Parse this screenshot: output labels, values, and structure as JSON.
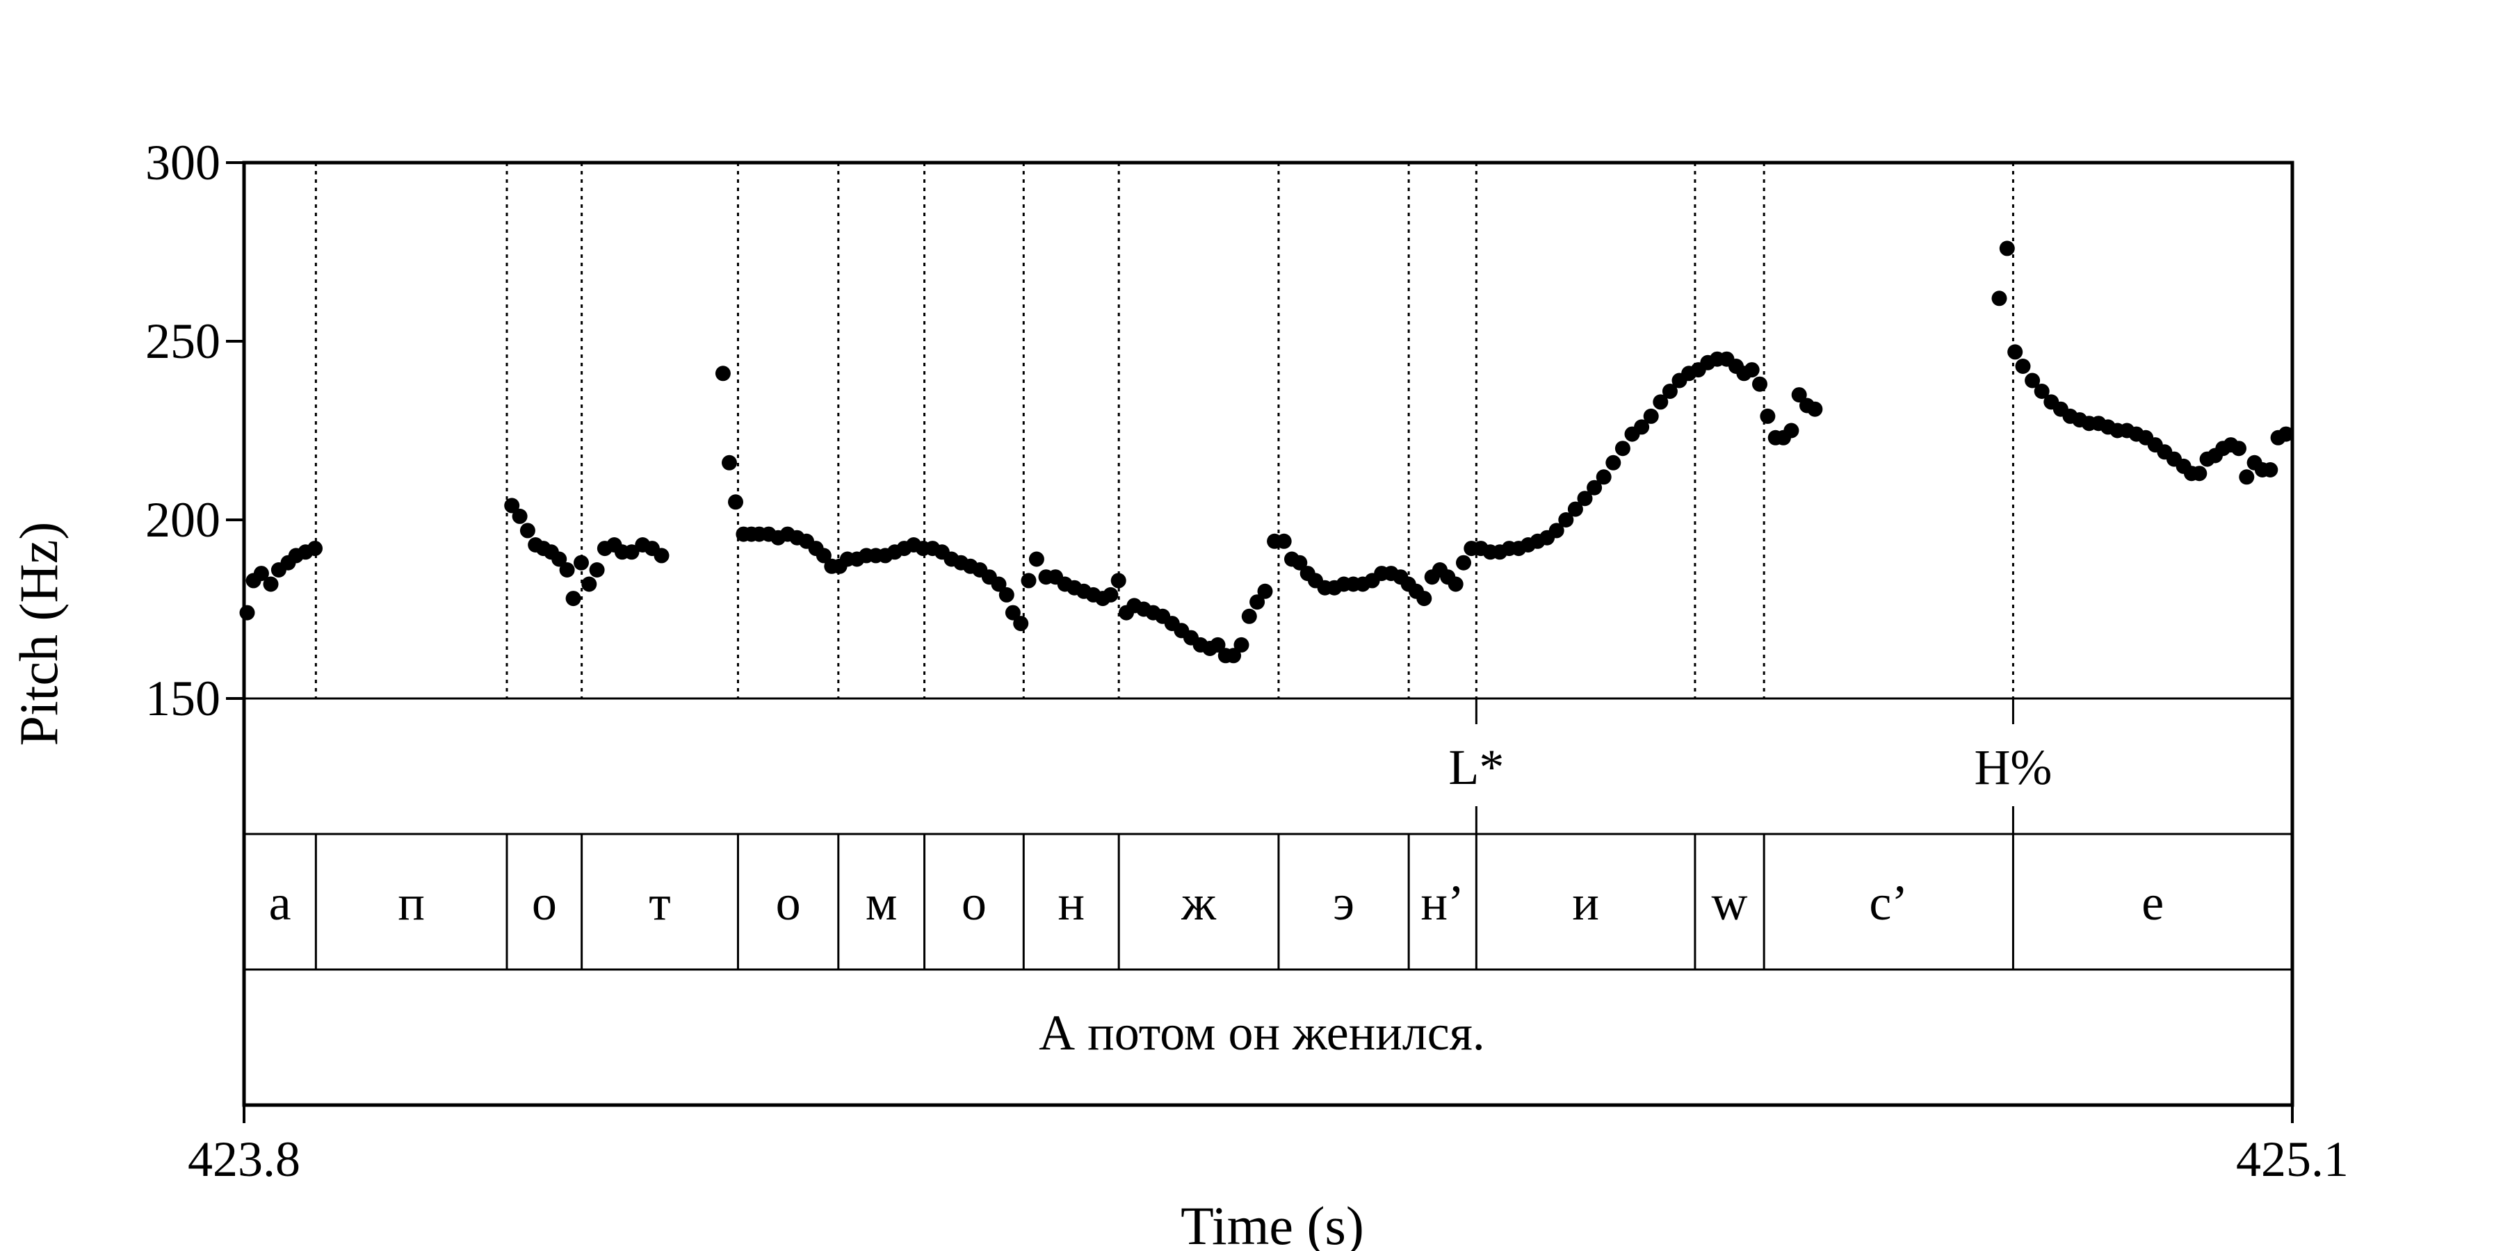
{
  "chart_data": {
    "type": "scatter",
    "xlabel": "Time (s)",
    "ylabel": "Pitch (Hz)",
    "xlim": [
      423.8,
      425.1
    ],
    "ylim": [
      150,
      300
    ],
    "x_ticks": [
      "423.8",
      "425.1"
    ],
    "y_ticks": [
      300,
      250,
      200,
      150
    ],
    "grid": false,
    "legend": "none",
    "colors": {
      "points": "#000000",
      "axes": "#000000",
      "boundaries": "#000000"
    },
    "boundaries": [
      423.8456,
      423.9668,
      424.0143,
      424.1135,
      424.1772,
      424.2318,
      424.2948,
      424.3552,
      424.4566,
      424.5392,
      424.5821,
      424.7209,
      424.7647,
      424.9228
    ],
    "tones": [
      {
        "label": "L*",
        "time": 424.5821
      },
      {
        "label": "H%",
        "time": 424.9228
      }
    ],
    "segments": [
      {
        "label": "а",
        "start": 423.8,
        "end": 423.8456
      },
      {
        "label": "п",
        "start": 423.8456,
        "end": 423.9668
      },
      {
        "label": "о",
        "start": 423.9668,
        "end": 424.0143
      },
      {
        "label": "т",
        "start": 424.0143,
        "end": 424.1135
      },
      {
        "label": "о",
        "start": 424.1135,
        "end": 424.1772
      },
      {
        "label": "м",
        "start": 424.1772,
        "end": 424.2318
      },
      {
        "label": "о",
        "start": 424.2318,
        "end": 424.2948
      },
      {
        "label": "н",
        "start": 424.2948,
        "end": 424.3552
      },
      {
        "label": "ж",
        "start": 424.3552,
        "end": 424.4566
      },
      {
        "label": "э",
        "start": 424.4566,
        "end": 424.5392
      },
      {
        "label": "н’",
        "start": 424.5392,
        "end": 424.5821
      },
      {
        "label": "и",
        "start": 424.5821,
        "end": 424.7209
      },
      {
        "label": "w",
        "start": 424.7209,
        "end": 424.7647
      },
      {
        "label": "с’",
        "start": 424.7647,
        "end": 424.9228
      },
      {
        "label": "е",
        "start": 424.9228,
        "end": 425.1
      }
    ],
    "utterance": "А потом он женился.",
    "points": [
      [
        423.802,
        174
      ],
      [
        423.806,
        183
      ],
      [
        423.811,
        185
      ],
      [
        423.817,
        182
      ],
      [
        423.822,
        186
      ],
      [
        423.828,
        188
      ],
      [
        423.833,
        190
      ],
      [
        423.839,
        191
      ],
      [
        423.845,
        192
      ],
      [
        423.97,
        204
      ],
      [
        423.975,
        201
      ],
      [
        423.98,
        197
      ],
      [
        423.985,
        193
      ],
      [
        423.99,
        192
      ],
      [
        423.995,
        191
      ],
      [
        424.0,
        189
      ],
      [
        424.005,
        186
      ],
      [
        424.009,
        178
      ],
      [
        424.014,
        188
      ],
      [
        424.019,
        182
      ],
      [
        424.024,
        186
      ],
      [
        424.029,
        192
      ],
      [
        424.035,
        193
      ],
      [
        424.04,
        191
      ],
      [
        424.046,
        191
      ],
      [
        424.053,
        193
      ],
      [
        424.059,
        192
      ],
      [
        424.065,
        190
      ],
      [
        424.104,
        241
      ],
      [
        424.108,
        216
      ],
      [
        424.112,
        205
      ],
      [
        424.117,
        196
      ],
      [
        424.122,
        196
      ],
      [
        424.127,
        196
      ],
      [
        424.133,
        196
      ],
      [
        424.139,
        195
      ],
      [
        424.145,
        196
      ],
      [
        424.151,
        195
      ],
      [
        424.157,
        194
      ],
      [
        424.163,
        192
      ],
      [
        424.168,
        190
      ],
      [
        424.173,
        187
      ],
      [
        424.178,
        187
      ],
      [
        424.183,
        189
      ],
      [
        424.189,
        189
      ],
      [
        424.195,
        190
      ],
      [
        424.201,
        190
      ],
      [
        424.207,
        190
      ],
      [
        424.213,
        191
      ],
      [
        424.219,
        192
      ],
      [
        424.225,
        193
      ],
      [
        424.231,
        192
      ],
      [
        424.237,
        192
      ],
      [
        424.243,
        191
      ],
      [
        424.249,
        189
      ],
      [
        424.255,
        188
      ],
      [
        424.261,
        187
      ],
      [
        424.267,
        186
      ],
      [
        424.273,
        184
      ],
      [
        424.279,
        182
      ],
      [
        424.284,
        179
      ],
      [
        424.288,
        174
      ],
      [
        424.293,
        171
      ],
      [
        424.298,
        183
      ],
      [
        424.303,
        189
      ],
      [
        424.309,
        184
      ],
      [
        424.315,
        184
      ],
      [
        424.321,
        182
      ],
      [
        424.327,
        181
      ],
      [
        424.333,
        180
      ],
      [
        424.339,
        179
      ],
      [
        424.345,
        178
      ],
      [
        424.35,
        179
      ],
      [
        424.355,
        183
      ],
      [
        424.36,
        174
      ],
      [
        424.365,
        176
      ],
      [
        424.371,
        175
      ],
      [
        424.377,
        174
      ],
      [
        424.383,
        173
      ],
      [
        424.389,
        171
      ],
      [
        424.395,
        169
      ],
      [
        424.401,
        167
      ],
      [
        424.407,
        165
      ],
      [
        424.413,
        164
      ],
      [
        424.418,
        165
      ],
      [
        424.423,
        162
      ],
      [
        424.428,
        162
      ],
      [
        424.433,
        165
      ],
      [
        424.438,
        173
      ],
      [
        424.443,
        177
      ],
      [
        424.448,
        180
      ],
      [
        424.454,
        194
      ],
      [
        424.46,
        194
      ],
      [
        424.465,
        189
      ],
      [
        424.47,
        188
      ],
      [
        424.475,
        185
      ],
      [
        424.48,
        183
      ],
      [
        424.486,
        181
      ],
      [
        424.492,
        181
      ],
      [
        424.498,
        182
      ],
      [
        424.504,
        182
      ],
      [
        424.51,
        182
      ],
      [
        424.516,
        183
      ],
      [
        424.522,
        185
      ],
      [
        424.528,
        185
      ],
      [
        424.534,
        184
      ],
      [
        424.539,
        182
      ],
      [
        424.544,
        180
      ],
      [
        424.549,
        178
      ],
      [
        424.554,
        184
      ],
      [
        424.559,
        186
      ],
      [
        424.564,
        184
      ],
      [
        424.569,
        182
      ],
      [
        424.574,
        188
      ],
      [
        424.579,
        192
      ],
      [
        424.585,
        192
      ],
      [
        424.591,
        191
      ],
      [
        424.597,
        191
      ],
      [
        424.603,
        192
      ],
      [
        424.609,
        192
      ],
      [
        424.615,
        193
      ],
      [
        424.621,
        194
      ],
      [
        424.627,
        195
      ],
      [
        424.633,
        197
      ],
      [
        424.639,
        200
      ],
      [
        424.645,
        203
      ],
      [
        424.651,
        206
      ],
      [
        424.657,
        209
      ],
      [
        424.663,
        212
      ],
      [
        424.669,
        216
      ],
      [
        424.675,
        220
      ],
      [
        424.681,
        224
      ],
      [
        424.687,
        226
      ],
      [
        424.693,
        229
      ],
      [
        424.699,
        233
      ],
      [
        424.705,
        236
      ],
      [
        424.711,
        239
      ],
      [
        424.717,
        241
      ],
      [
        424.723,
        242
      ],
      [
        424.729,
        244
      ],
      [
        424.735,
        245
      ],
      [
        424.741,
        245
      ],
      [
        424.747,
        243
      ],
      [
        424.752,
        241
      ],
      [
        424.757,
        242
      ],
      [
        424.762,
        238
      ],
      [
        424.767,
        229
      ],
      [
        424.772,
        223
      ],
      [
        424.777,
        223
      ],
      [
        424.782,
        225
      ],
      [
        424.787,
        235
      ],
      [
        424.792,
        232
      ],
      [
        424.797,
        231
      ],
      [
        424.914,
        262
      ],
      [
        424.919,
        276
      ],
      [
        424.924,
        247
      ],
      [
        424.929,
        243
      ],
      [
        424.935,
        239
      ],
      [
        424.941,
        236
      ],
      [
        424.947,
        233
      ],
      [
        424.953,
        231
      ],
      [
        424.959,
        229
      ],
      [
        424.965,
        228
      ],
      [
        424.971,
        227
      ],
      [
        424.977,
        227
      ],
      [
        424.983,
        226
      ],
      [
        424.989,
        225
      ],
      [
        424.995,
        225
      ],
      [
        425.001,
        224
      ],
      [
        425.007,
        223
      ],
      [
        425.013,
        221
      ],
      [
        425.019,
        219
      ],
      [
        425.025,
        217
      ],
      [
        425.031,
        215
      ],
      [
        425.036,
        213
      ],
      [
        425.041,
        213
      ],
      [
        425.046,
        217
      ],
      [
        425.051,
        218
      ],
      [
        425.056,
        220
      ],
      [
        425.061,
        221
      ],
      [
        425.066,
        220
      ],
      [
        425.071,
        212
      ],
      [
        425.076,
        216
      ],
      [
        425.081,
        214
      ],
      [
        425.086,
        214
      ],
      [
        425.091,
        223
      ],
      [
        425.096,
        224
      ]
    ]
  }
}
